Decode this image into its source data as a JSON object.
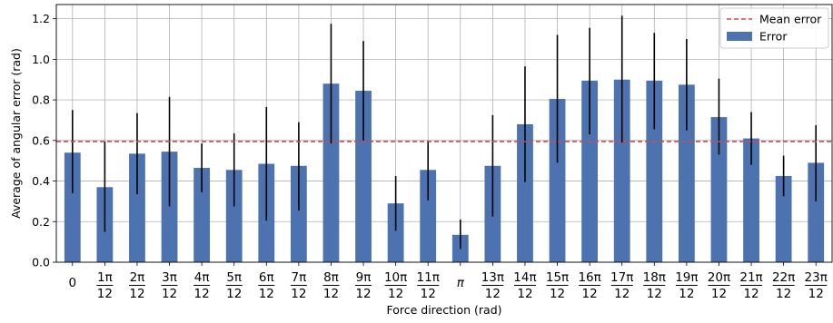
{
  "chart_data": {
    "type": "bar",
    "title": "",
    "xlabel": "Force direction (rad)",
    "ylabel": "Average of angular error (rad)",
    "ylim": [
      0,
      1.27
    ],
    "yticks": [
      "0.0",
      "0.2",
      "0.4",
      "0.6",
      "0.8",
      "1.0",
      "1.2"
    ],
    "grid": true,
    "legend_position": "top-right",
    "legend": [
      {
        "label": "Mean error",
        "kind": "dashed-line",
        "color": "#c44e52"
      },
      {
        "label": "Error",
        "kind": "bar",
        "color": "#4c72b0"
      }
    ],
    "categories": [
      {
        "num": "0",
        "den": ""
      },
      {
        "num": "1π",
        "den": "12"
      },
      {
        "num": "2π",
        "den": "12"
      },
      {
        "num": "3π",
        "den": "12"
      },
      {
        "num": "4π",
        "den": "12"
      },
      {
        "num": "5π",
        "den": "12"
      },
      {
        "num": "6π",
        "den": "12"
      },
      {
        "num": "7π",
        "den": "12"
      },
      {
        "num": "8π",
        "den": "12"
      },
      {
        "num": "9π",
        "den": "12"
      },
      {
        "num": "10π",
        "den": "12"
      },
      {
        "num": "11π",
        "den": "12"
      },
      {
        "num": "π",
        "den": ""
      },
      {
        "num": "13π",
        "den": "12"
      },
      {
        "num": "14π",
        "den": "12"
      },
      {
        "num": "15π",
        "den": "12"
      },
      {
        "num": "16π",
        "den": "12"
      },
      {
        "num": "17π",
        "den": "12"
      },
      {
        "num": "18π",
        "den": "12"
      },
      {
        "num": "19π",
        "den": "12"
      },
      {
        "num": "20π",
        "den": "12"
      },
      {
        "num": "21π",
        "den": "12"
      },
      {
        "num": "22π",
        "den": "12"
      },
      {
        "num": "23π",
        "den": "12"
      }
    ],
    "series": [
      {
        "name": "Error",
        "color": "#4c72b0",
        "values": [
          0.54,
          0.37,
          0.535,
          0.545,
          0.465,
          0.455,
          0.485,
          0.475,
          0.88,
          0.845,
          0.29,
          0.455,
          0.135,
          0.475,
          0.68,
          0.805,
          0.895,
          0.9,
          0.895,
          0.875,
          0.715,
          0.61,
          0.425,
          0.49
        ],
        "error_low": [
          0.34,
          0.15,
          0.335,
          0.275,
          0.345,
          0.275,
          0.205,
          0.255,
          0.585,
          0.6,
          0.155,
          0.305,
          0.065,
          0.225,
          0.395,
          0.49,
          0.63,
          0.59,
          0.655,
          0.65,
          0.53,
          0.48,
          0.325,
          0.3
        ],
        "error_high": [
          0.75,
          0.595,
          0.735,
          0.815,
          0.585,
          0.635,
          0.765,
          0.69,
          1.175,
          1.09,
          0.425,
          0.6,
          0.21,
          0.725,
          0.965,
          1.12,
          1.155,
          1.215,
          1.13,
          1.1,
          0.905,
          0.74,
          0.525,
          0.675
        ]
      }
    ],
    "mean_error": 0.595
  }
}
